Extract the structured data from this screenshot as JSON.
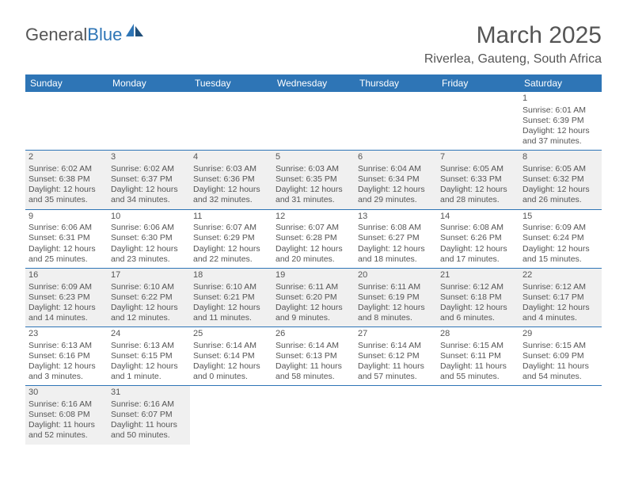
{
  "brand": {
    "part1": "General",
    "part2": "Blue",
    "color1": "#555555",
    "color2": "#2e75b6"
  },
  "title": "March 2025",
  "location": "Riverlea, Gauteng, South Africa",
  "headerBg": "#2e75b6",
  "headerFg": "#ffffff",
  "altRowBg": "#f0f0f0",
  "ruleColor": "#2e75b6",
  "dayNames": [
    "Sunday",
    "Monday",
    "Tuesday",
    "Wednesday",
    "Thursday",
    "Friday",
    "Saturday"
  ],
  "weeks": [
    [
      null,
      null,
      null,
      null,
      null,
      null,
      {
        "n": "1",
        "sr": "Sunrise: 6:01 AM",
        "ss": "Sunset: 6:39 PM",
        "d1": "Daylight: 12 hours",
        "d2": "and 37 minutes."
      }
    ],
    [
      {
        "n": "2",
        "sr": "Sunrise: 6:02 AM",
        "ss": "Sunset: 6:38 PM",
        "d1": "Daylight: 12 hours",
        "d2": "and 35 minutes."
      },
      {
        "n": "3",
        "sr": "Sunrise: 6:02 AM",
        "ss": "Sunset: 6:37 PM",
        "d1": "Daylight: 12 hours",
        "d2": "and 34 minutes."
      },
      {
        "n": "4",
        "sr": "Sunrise: 6:03 AM",
        "ss": "Sunset: 6:36 PM",
        "d1": "Daylight: 12 hours",
        "d2": "and 32 minutes."
      },
      {
        "n": "5",
        "sr": "Sunrise: 6:03 AM",
        "ss": "Sunset: 6:35 PM",
        "d1": "Daylight: 12 hours",
        "d2": "and 31 minutes."
      },
      {
        "n": "6",
        "sr": "Sunrise: 6:04 AM",
        "ss": "Sunset: 6:34 PM",
        "d1": "Daylight: 12 hours",
        "d2": "and 29 minutes."
      },
      {
        "n": "7",
        "sr": "Sunrise: 6:05 AM",
        "ss": "Sunset: 6:33 PM",
        "d1": "Daylight: 12 hours",
        "d2": "and 28 minutes."
      },
      {
        "n": "8",
        "sr": "Sunrise: 6:05 AM",
        "ss": "Sunset: 6:32 PM",
        "d1": "Daylight: 12 hours",
        "d2": "and 26 minutes."
      }
    ],
    [
      {
        "n": "9",
        "sr": "Sunrise: 6:06 AM",
        "ss": "Sunset: 6:31 PM",
        "d1": "Daylight: 12 hours",
        "d2": "and 25 minutes."
      },
      {
        "n": "10",
        "sr": "Sunrise: 6:06 AM",
        "ss": "Sunset: 6:30 PM",
        "d1": "Daylight: 12 hours",
        "d2": "and 23 minutes."
      },
      {
        "n": "11",
        "sr": "Sunrise: 6:07 AM",
        "ss": "Sunset: 6:29 PM",
        "d1": "Daylight: 12 hours",
        "d2": "and 22 minutes."
      },
      {
        "n": "12",
        "sr": "Sunrise: 6:07 AM",
        "ss": "Sunset: 6:28 PM",
        "d1": "Daylight: 12 hours",
        "d2": "and 20 minutes."
      },
      {
        "n": "13",
        "sr": "Sunrise: 6:08 AM",
        "ss": "Sunset: 6:27 PM",
        "d1": "Daylight: 12 hours",
        "d2": "and 18 minutes."
      },
      {
        "n": "14",
        "sr": "Sunrise: 6:08 AM",
        "ss": "Sunset: 6:26 PM",
        "d1": "Daylight: 12 hours",
        "d2": "and 17 minutes."
      },
      {
        "n": "15",
        "sr": "Sunrise: 6:09 AM",
        "ss": "Sunset: 6:24 PM",
        "d1": "Daylight: 12 hours",
        "d2": "and 15 minutes."
      }
    ],
    [
      {
        "n": "16",
        "sr": "Sunrise: 6:09 AM",
        "ss": "Sunset: 6:23 PM",
        "d1": "Daylight: 12 hours",
        "d2": "and 14 minutes."
      },
      {
        "n": "17",
        "sr": "Sunrise: 6:10 AM",
        "ss": "Sunset: 6:22 PM",
        "d1": "Daylight: 12 hours",
        "d2": "and 12 minutes."
      },
      {
        "n": "18",
        "sr": "Sunrise: 6:10 AM",
        "ss": "Sunset: 6:21 PM",
        "d1": "Daylight: 12 hours",
        "d2": "and 11 minutes."
      },
      {
        "n": "19",
        "sr": "Sunrise: 6:11 AM",
        "ss": "Sunset: 6:20 PM",
        "d1": "Daylight: 12 hours",
        "d2": "and 9 minutes."
      },
      {
        "n": "20",
        "sr": "Sunrise: 6:11 AM",
        "ss": "Sunset: 6:19 PM",
        "d1": "Daylight: 12 hours",
        "d2": "and 8 minutes."
      },
      {
        "n": "21",
        "sr": "Sunrise: 6:12 AM",
        "ss": "Sunset: 6:18 PM",
        "d1": "Daylight: 12 hours",
        "d2": "and 6 minutes."
      },
      {
        "n": "22",
        "sr": "Sunrise: 6:12 AM",
        "ss": "Sunset: 6:17 PM",
        "d1": "Daylight: 12 hours",
        "d2": "and 4 minutes."
      }
    ],
    [
      {
        "n": "23",
        "sr": "Sunrise: 6:13 AM",
        "ss": "Sunset: 6:16 PM",
        "d1": "Daylight: 12 hours",
        "d2": "and 3 minutes."
      },
      {
        "n": "24",
        "sr": "Sunrise: 6:13 AM",
        "ss": "Sunset: 6:15 PM",
        "d1": "Daylight: 12 hours",
        "d2": "and 1 minute."
      },
      {
        "n": "25",
        "sr": "Sunrise: 6:14 AM",
        "ss": "Sunset: 6:14 PM",
        "d1": "Daylight: 12 hours",
        "d2": "and 0 minutes."
      },
      {
        "n": "26",
        "sr": "Sunrise: 6:14 AM",
        "ss": "Sunset: 6:13 PM",
        "d1": "Daylight: 11 hours",
        "d2": "and 58 minutes."
      },
      {
        "n": "27",
        "sr": "Sunrise: 6:14 AM",
        "ss": "Sunset: 6:12 PM",
        "d1": "Daylight: 11 hours",
        "d2": "and 57 minutes."
      },
      {
        "n": "28",
        "sr": "Sunrise: 6:15 AM",
        "ss": "Sunset: 6:11 PM",
        "d1": "Daylight: 11 hours",
        "d2": "and 55 minutes."
      },
      {
        "n": "29",
        "sr": "Sunrise: 6:15 AM",
        "ss": "Sunset: 6:09 PM",
        "d1": "Daylight: 11 hours",
        "d2": "and 54 minutes."
      }
    ],
    [
      {
        "n": "30",
        "sr": "Sunrise: 6:16 AM",
        "ss": "Sunset: 6:08 PM",
        "d1": "Daylight: 11 hours",
        "d2": "and 52 minutes."
      },
      {
        "n": "31",
        "sr": "Sunrise: 6:16 AM",
        "ss": "Sunset: 6:07 PM",
        "d1": "Daylight: 11 hours",
        "d2": "and 50 minutes."
      },
      null,
      null,
      null,
      null,
      null
    ]
  ]
}
